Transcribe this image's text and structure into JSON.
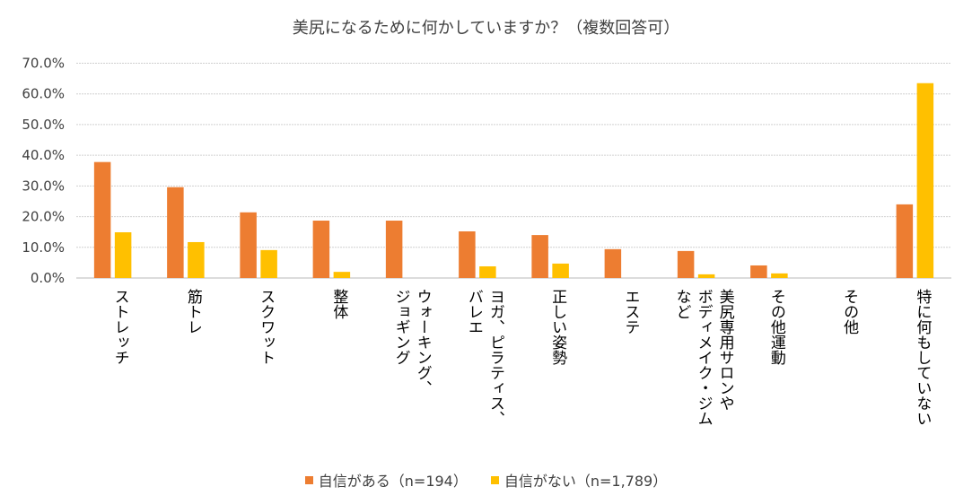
{
  "chart_data": {
    "type": "bar",
    "title": "美尻になるために何かしていますか？（複数回答可）",
    "categories": [
      "ストレッチ",
      "筋トレ",
      "スクワット",
      "整体",
      "ウォーキング、\nジョギング",
      "ヨガ、ピラティス、\nバレエ",
      "正しい姿勢",
      "エステ",
      "美尻専用サロンや\nボディメイク・ジム\nなど",
      "その他運動",
      "その他",
      "特に何もしていない"
    ],
    "series": [
      {
        "name": "自信がある（n=194）",
        "color": "#ED7D31",
        "values": [
          37.8,
          29.6,
          21.4,
          18.7,
          18.7,
          15.2,
          14.0,
          9.4,
          8.8,
          4.1,
          0,
          24.0
        ]
      },
      {
        "name": "自信がない（n=1,789）",
        "color": "#FFC000",
        "values": [
          14.9,
          11.7,
          9.1,
          2.0,
          0,
          3.8,
          4.7,
          0,
          1.2,
          1.5,
          0,
          63.5
        ]
      }
    ],
    "yticks": [
      "0.0%",
      "10.0%",
      "20.0%",
      "30.0%",
      "40.0%",
      "50.0%",
      "60.0%",
      "70.0%"
    ],
    "ylim": [
      0,
      70
    ],
    "grid": true,
    "legend_position": "bottom"
  }
}
